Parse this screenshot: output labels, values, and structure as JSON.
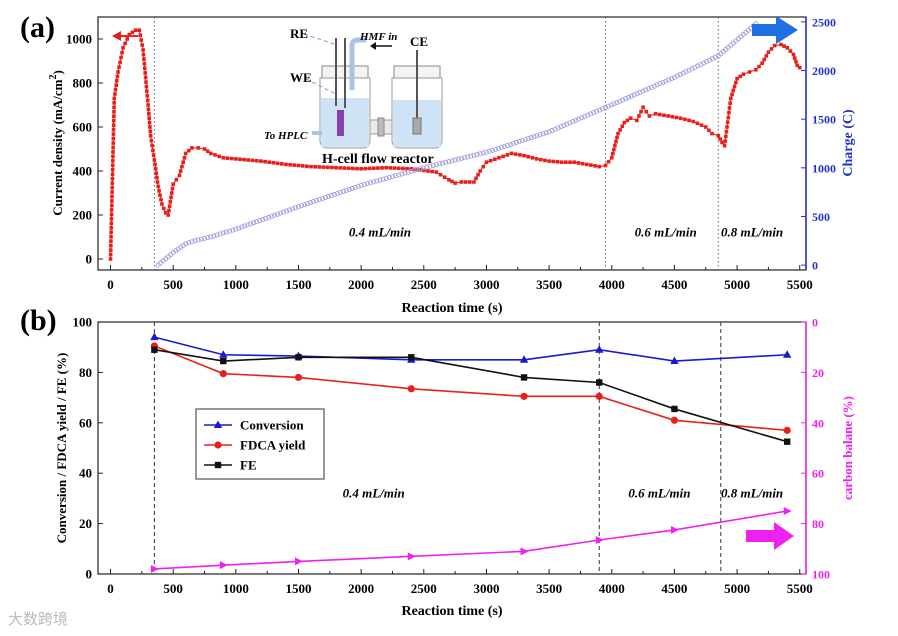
{
  "chart_data": [
    {
      "panel": "(a)",
      "type": "line",
      "xlabel": "Reaction time (s)",
      "ylabel": "Current density (mA/cm",
      "ylabel_sup": "2",
      "ylabel_close": ")",
      "y2label": "Charge (C)",
      "xlim": [
        -100,
        5550
      ],
      "ylim": [
        -50,
        1100
      ],
      "y2lim": [
        -50,
        2550
      ],
      "xticks": [
        0,
        500,
        1000,
        1500,
        2000,
        2500,
        3000,
        3500,
        4000,
        4500,
        5000,
        5500
      ],
      "yticks": [
        0,
        200,
        400,
        600,
        800,
        1000
      ],
      "y2ticks": [
        0,
        500,
        1000,
        1500,
        2000,
        2500
      ],
      "vlines": [
        350,
        3950,
        4850
      ],
      "flow_labels": [
        {
          "text": "0.4 mL/min",
          "x": 2150,
          "y": 120
        },
        {
          "text": "0.6 mL/min",
          "x": 4430,
          "y": 120
        },
        {
          "text": "0.8 mL/min",
          "x": 5120,
          "y": 120
        }
      ],
      "series": [
        {
          "name": "Current density",
          "axis": "left",
          "color": "#e8201b",
          "x": [
            0,
            30,
            60,
            100,
            150,
            200,
            230,
            260,
            300,
            320,
            350,
            380,
            410,
            440,
            460,
            500,
            550,
            600,
            650,
            700,
            750,
            800,
            900,
            1000,
            1200,
            1400,
            1600,
            1800,
            2000,
            2200,
            2400,
            2600,
            2700,
            2750,
            2800,
            2900,
            2950,
            3000,
            3100,
            3200,
            3300,
            3400,
            3500,
            3600,
            3700,
            3800,
            3900,
            3950,
            4000,
            4050,
            4100,
            4150,
            4200,
            4250,
            4300,
            4350,
            4450,
            4550,
            4650,
            4750,
            4800,
            4850,
            4880,
            4900,
            4920,
            4950,
            5000,
            5050,
            5100,
            5150,
            5200,
            5250,
            5300,
            5350,
            5400,
            5450,
            5480,
            5500
          ],
          "values": [
            0,
            730,
            850,
            960,
            1020,
            1040,
            1040,
            950,
            700,
            560,
            450,
            330,
            250,
            210,
            200,
            340,
            380,
            480,
            505,
            505,
            500,
            480,
            460,
            455,
            445,
            430,
            420,
            415,
            410,
            415,
            410,
            395,
            360,
            345,
            350,
            350,
            400,
            440,
            460,
            480,
            470,
            455,
            445,
            440,
            440,
            430,
            420,
            425,
            460,
            570,
            620,
            640,
            630,
            690,
            650,
            660,
            650,
            640,
            625,
            600,
            570,
            560,
            530,
            515,
            600,
            730,
            820,
            840,
            850,
            860,
            890,
            940,
            970,
            975,
            960,
            930,
            880,
            870
          ]
        },
        {
          "name": "Charge",
          "axis": "right",
          "color": "#9999dd",
          "x": [
            380,
            500,
            600,
            700,
            800,
            1000,
            1500,
            2000,
            2500,
            3000,
            3500,
            3950,
            4500,
            4850,
            5150
          ],
          "values": [
            0,
            130,
            220,
            260,
            290,
            370,
            600,
            820,
            1000,
            1160,
            1370,
            1620,
            1930,
            2150,
            2480
          ]
        }
      ]
    },
    {
      "panel": "(b)",
      "type": "line",
      "xlabel": "Reaction time (s)",
      "ylabel": "Conversion / FDCA yield / FE (%)",
      "y2label": "carbon balane (%)",
      "xlim": [
        -100,
        5550
      ],
      "ylim": [
        0,
        100
      ],
      "y2lim": [
        100,
        0
      ],
      "xticks": [
        0,
        500,
        1000,
        1500,
        2000,
        2500,
        3000,
        3500,
        4000,
        4500,
        5000,
        5500
      ],
      "yticks": [
        0,
        20,
        40,
        60,
        80,
        100
      ],
      "y2ticks": [
        0,
        20,
        40,
        60,
        80,
        100
      ],
      "vlines": [
        350,
        3900,
        4870
      ],
      "flow_labels": [
        {
          "text": "0.4 mL/min",
          "x": 2100,
          "y": 32
        },
        {
          "text": "0.6 mL/min",
          "x": 4380,
          "y": 32
        },
        {
          "text": "0.8 mL/min",
          "x": 5120,
          "y": 32
        }
      ],
      "series": [
        {
          "name": "Conversion",
          "axis": "left",
          "color": "#1a1acc",
          "marker": "triangle",
          "x": [
            350,
            900,
            1500,
            2400,
            3300,
            3900,
            4500,
            5400
          ],
          "values": [
            94,
            87,
            86.5,
            85,
            85,
            89,
            84.5,
            87
          ]
        },
        {
          "name": "FDCA yield",
          "axis": "left",
          "color": "#e8201b",
          "marker": "circle",
          "x": [
            350,
            900,
            1500,
            2400,
            3300,
            3900,
            4500,
            5400
          ],
          "values": [
            90.5,
            79.5,
            78,
            73.5,
            70.5,
            70.5,
            61,
            57
          ]
        },
        {
          "name": "FE",
          "axis": "left",
          "color": "#111111",
          "marker": "square",
          "x": [
            350,
            900,
            1500,
            2400,
            3300,
            3900,
            4500,
            5400
          ],
          "values": [
            89,
            84.5,
            86,
            86,
            78,
            76,
            65.5,
            52.5
          ]
        },
        {
          "name": "carbon balane",
          "axis": "right",
          "color": "#ee22ee",
          "marker": "triangle-right",
          "x": [
            350,
            900,
            1500,
            2400,
            3300,
            3900,
            4500,
            5400
          ],
          "values": [
            98,
            96.5,
            95,
            93,
            91,
            86.5,
            82.5,
            75
          ]
        }
      ]
    }
  ],
  "inset": {
    "title": "H-cell flow reactor",
    "re_label": "RE",
    "we_label": "WE",
    "ce_label": "CE",
    "hmf_label": "HMF in",
    "hplc_label": "To HPLC"
  },
  "watermark": "大数跨境"
}
